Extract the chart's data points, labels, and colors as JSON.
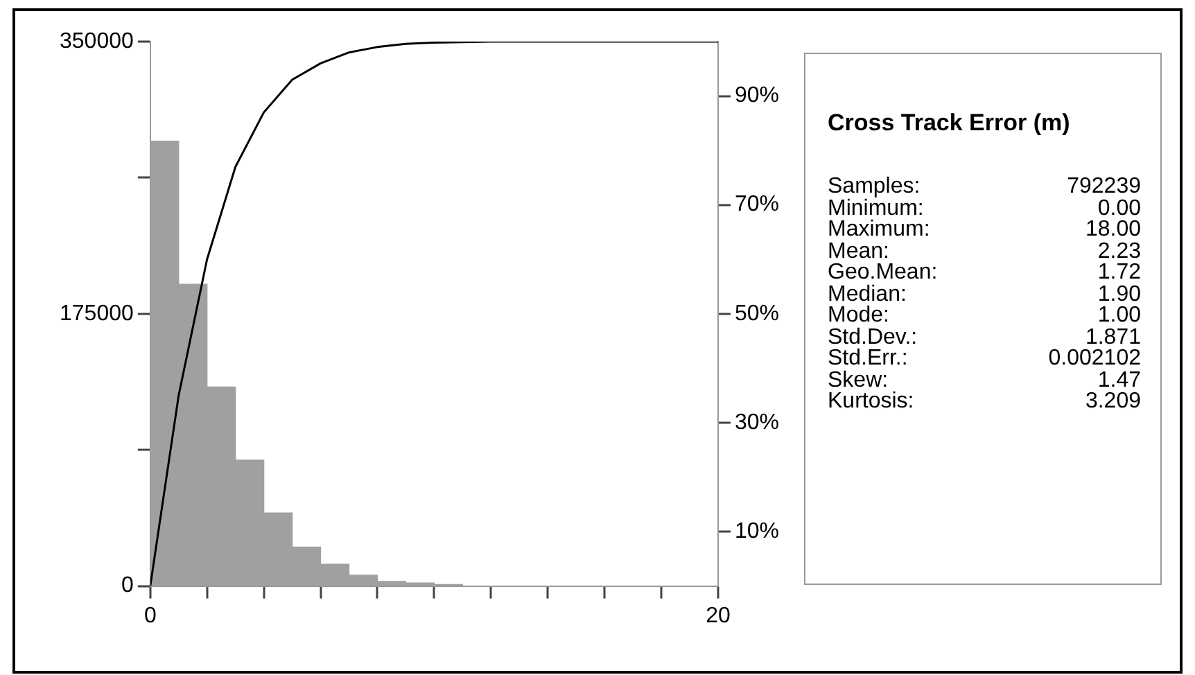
{
  "chart_data": {
    "type": "histogram",
    "title": "Cross Track Error (m)",
    "bins": [
      0,
      1,
      2,
      3,
      4,
      5,
      6,
      7,
      8,
      9,
      10,
      11,
      12,
      13,
      14,
      15,
      16,
      17,
      18
    ],
    "values": [
      286000,
      194000,
      128000,
      81000,
      47000,
      25000,
      14000,
      7000,
      3000,
      2000,
      1000,
      0,
      0,
      0,
      0,
      0,
      0,
      0
    ],
    "color": "#a0a0a0",
    "series": [
      {
        "type": "line",
        "axis": "y2",
        "color": "#000000",
        "x": [
          0,
          1,
          2,
          3,
          4,
          5,
          6,
          7,
          8,
          9,
          10,
          12,
          14,
          20
        ],
        "values": [
          0,
          35,
          60,
          77,
          87,
          93,
          96,
          98,
          99,
          99.6,
          99.8,
          100,
          100,
          100
        ]
      }
    ],
    "xlim": [
      0,
      20
    ],
    "xticks": [
      0,
      {
        "value": 2,
        "label": null
      },
      {
        "value": 4,
        "label": null
      },
      {
        "value": 6,
        "label": null
      },
      {
        "value": 8,
        "label": null
      },
      {
        "value": 10,
        "label": null
      },
      {
        "value": 12,
        "label": null
      },
      {
        "value": 14,
        "label": null
      },
      {
        "value": 16,
        "label": null
      },
      {
        "value": 18,
        "label": null
      },
      20
    ],
    "ylim": [
      0,
      350000
    ],
    "yticks": [
      0,
      {
        "value": 87500,
        "label": null
      },
      175000,
      {
        "value": 262500,
        "label": null
      },
      350000
    ],
    "y2lim": [
      0,
      100
    ],
    "y2ticks": [
      {
        "value": 10,
        "label": "10%"
      },
      {
        "value": 30,
        "label": "30%"
      },
      {
        "value": 50,
        "label": "50%"
      },
      {
        "value": 70,
        "label": "70%"
      },
      {
        "value": 90,
        "label": "90%"
      }
    ],
    "annotations": [
      "Samples: 792239",
      "Minimum: 0.00",
      "Maximum: 18.00",
      "Mean: 2.23",
      "Geo.Mean: 1.72",
      "Median: 1.90",
      "Mode: 1.00",
      "Std.Dev.: 1.871",
      "Std.Err.: 0.002102",
      "Skew: 1.47",
      "Kurtosis: 3.209"
    ]
  }
}
